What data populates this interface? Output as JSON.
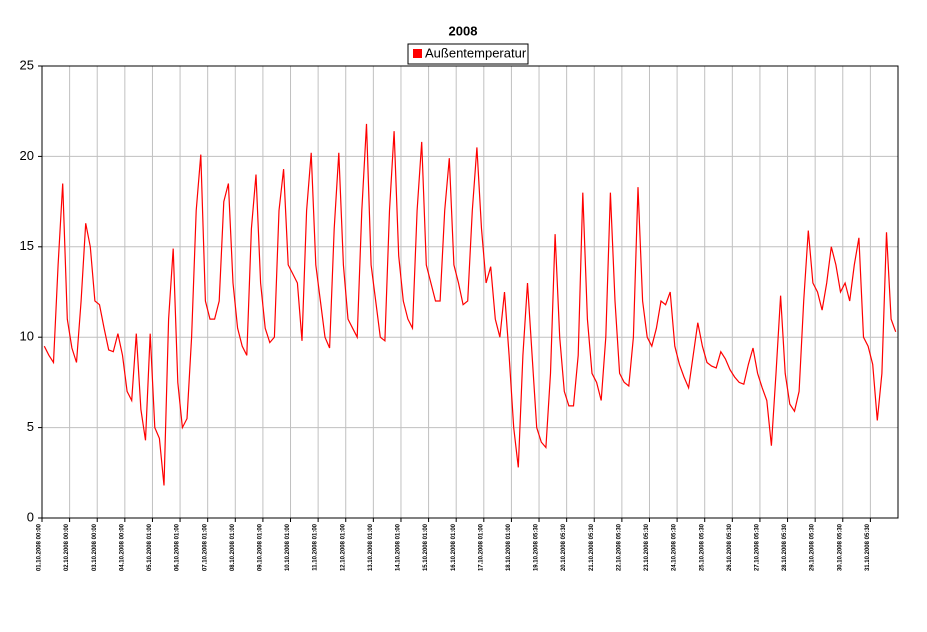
{
  "chart_data": {
    "type": "line",
    "title": "2008",
    "categories": [
      "01.10.2008 00:00",
      null,
      null,
      null,
      null,
      null,
      "02.10.2008 00:00",
      null,
      null,
      null,
      null,
      null,
      "03.10.2008 00:00",
      null,
      null,
      null,
      null,
      null,
      "04.10.2008 00:00",
      null,
      null,
      null,
      null,
      null,
      "05.10.2008 01:00",
      null,
      null,
      null,
      null,
      null,
      "06.10.2008 01:00",
      null,
      null,
      null,
      null,
      null,
      "07.10.2008 01:00",
      null,
      null,
      null,
      null,
      null,
      "08.10.2008 01:00",
      null,
      null,
      null,
      null,
      null,
      "09.10.2008 01:00",
      null,
      null,
      null,
      null,
      null,
      "10.10.2008 01:00",
      null,
      null,
      null,
      null,
      null,
      "11.10.2008 01:00",
      null,
      null,
      null,
      null,
      null,
      "12.10.2008 01:00",
      null,
      null,
      null,
      null,
      null,
      "13.10.2008 01:00",
      null,
      null,
      null,
      null,
      null,
      "14.10.2008 01:00",
      null,
      null,
      null,
      null,
      null,
      "15.10.2008 01:00",
      null,
      null,
      null,
      null,
      null,
      "16.10.2008 01:00",
      null,
      null,
      null,
      null,
      null,
      "17.10.2008 01:00",
      null,
      null,
      null,
      null,
      null,
      "18.10.2008 01:00",
      null,
      null,
      null,
      null,
      null,
      "19.10.2008 05:30",
      null,
      null,
      null,
      null,
      null,
      "20.10.2008 05:30",
      null,
      null,
      null,
      null,
      null,
      "21.10.2008 05:30",
      null,
      null,
      null,
      null,
      null,
      "22.10.2008 05:30",
      null,
      null,
      null,
      null,
      null,
      "23.10.2008 05:30",
      null,
      null,
      null,
      null,
      null,
      "24.10.2008 05:30",
      null,
      null,
      null,
      null,
      null,
      "25.10.2008 05:30",
      null,
      null,
      null,
      null,
      null,
      "26.10.2008 05:30",
      null,
      null,
      null,
      null,
      null,
      "27.10.2008 05:30",
      null,
      null,
      null,
      null,
      null,
      "28.10.2008 05:30",
      null,
      null,
      null,
      null,
      null,
      "29.10.2008 05:30",
      null,
      null,
      null,
      null,
      null,
      "30.10.2008 05:30",
      null,
      null,
      null,
      null,
      null,
      "31.10.2008 05:30",
      null,
      null,
      null,
      null,
      null
    ],
    "series": [
      {
        "name": "Außentemperatur",
        "color": "#ff0000",
        "values": [
          9.5,
          9.0,
          8.6,
          14.0,
          18.5,
          11.0,
          9.4,
          8.6,
          12.0,
          16.3,
          15.0,
          12.0,
          11.8,
          10.5,
          9.3,
          9.2,
          10.2,
          9.0,
          7.0,
          6.5,
          10.2,
          6.0,
          4.3,
          10.2,
          5.0,
          4.4,
          1.8,
          11.0,
          14.9,
          7.5,
          5.0,
          5.5,
          10.0,
          17.0,
          20.1,
          12.0,
          11.0,
          11.0,
          12.0,
          17.5,
          18.5,
          13.0,
          10.5,
          9.5,
          9.0,
          16.0,
          19.0,
          13.0,
          10.5,
          9.7,
          10.0,
          17.0,
          19.3,
          14.0,
          13.5,
          13.0,
          9.8,
          17.0,
          20.2,
          14.0,
          12.0,
          10.0,
          9.4,
          16.0,
          20.2,
          14.0,
          11.0,
          10.5,
          10.0,
          17.0,
          21.8,
          14.0,
          12.0,
          10.0,
          9.8,
          17.0,
          21.4,
          14.5,
          12.0,
          11.0,
          10.5,
          17.0,
          20.8,
          14.0,
          13.0,
          12.0,
          12.0,
          17.0,
          19.9,
          14.0,
          13.0,
          11.8,
          12.0,
          17.0,
          20.5,
          16.0,
          13.0,
          13.9,
          11.0,
          10.0,
          12.5,
          9.0,
          5.0,
          2.8,
          9.0,
          13.0,
          9.0,
          5.0,
          4.2,
          3.9,
          8.0,
          15.7,
          10.0,
          7.0,
          6.2,
          6.2,
          9.0,
          18.0,
          11.0,
          8.0,
          7.5,
          6.5,
          10.0,
          18.0,
          12.0,
          8.0,
          7.5,
          7.3,
          10.0,
          18.3,
          12.0,
          10.0,
          9.5,
          10.5,
          12.0,
          11.8,
          12.5,
          9.5,
          8.5,
          7.8,
          7.2,
          9.0,
          10.8,
          9.5,
          8.6,
          8.4,
          8.3,
          9.2,
          8.8,
          8.2,
          7.8,
          7.5,
          7.4,
          8.5,
          9.4,
          8.0,
          7.2,
          6.5,
          4.0,
          8.0,
          12.3,
          8.0,
          6.3,
          5.9,
          7.0,
          12.0,
          15.9,
          13.0,
          12.5,
          11.5,
          13.0,
          15.0,
          14.0,
          12.5,
          13.0,
          12.0,
          14.0,
          15.5,
          10.0,
          9.5,
          8.5,
          5.4,
          8.0,
          15.8,
          11.0,
          10.3
        ]
      }
    ],
    "ylim": [
      0,
      25
    ],
    "yticks": [
      0,
      5,
      10,
      15,
      20,
      25
    ],
    "grid": true,
    "legend": "top"
  }
}
